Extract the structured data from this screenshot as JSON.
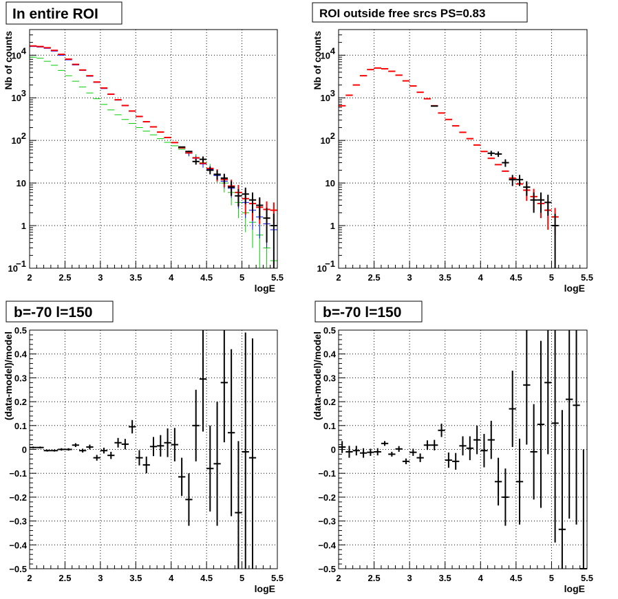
{
  "chart_data": [
    {
      "type": "scatter",
      "title": "In entire ROI",
      "xlabel": "logE",
      "ylabel": "Nb of counts",
      "xlim": [
        2,
        5.5
      ],
      "ylim": [
        0.1,
        40000
      ],
      "yscale": "log",
      "grid": true,
      "x_ticks": [
        "2",
        "2.5",
        "3",
        "3.5",
        "4",
        "4.5",
        "5",
        "5.5"
      ],
      "y_ticks": [
        {
          "v": 0.1,
          "base": "10",
          "exp": "−1"
        },
        {
          "v": 1,
          "base": "1",
          "exp": ""
        },
        {
          "v": 10,
          "base": "10",
          "exp": ""
        },
        {
          "v": 100,
          "base": "10",
          "exp": "2"
        },
        {
          "v": 1000,
          "base": "10",
          "exp": "3"
        },
        {
          "v": 10000,
          "base": "10",
          "exp": "4"
        }
      ],
      "series": [
        {
          "color": "#00cc00",
          "style": "step",
          "values": [
            9000,
            8500,
            7200,
            5800,
            4400,
            3300,
            2450,
            1800,
            1300,
            950,
            700,
            520,
            400,
            310,
            250,
            200,
            165,
            135,
            110,
            90,
            75,
            62,
            50,
            40,
            30,
            22,
            15,
            10,
            6,
            3.5,
            2,
            1.2,
            0.6,
            0.3,
            0.15
          ],
          "err_lo": [
            0,
            0,
            0,
            0,
            0,
            0,
            0,
            0,
            0,
            0,
            0,
            0,
            0,
            0,
            0,
            0,
            0,
            0,
            0,
            0,
            0,
            0,
            8,
            8,
            7,
            6,
            5,
            4,
            3,
            2,
            1.3,
            0.9,
            0.5,
            0.3,
            0.15
          ],
          "err_hi": [
            0,
            0,
            0,
            0,
            0,
            0,
            0,
            0,
            0,
            0,
            0,
            0,
            0,
            0,
            0,
            0,
            0,
            0,
            0,
            0,
            0,
            0,
            8,
            8,
            7,
            6,
            5,
            4,
            3,
            2,
            1.3,
            0.9,
            0.6,
            0.4,
            0.2
          ]
        },
        {
          "color": "#0000ff",
          "style": "step",
          "values": [
            16000,
            15500,
            14500,
            12500,
            10000,
            7800,
            5900,
            4400,
            3200,
            2300,
            1650,
            1200,
            880,
            650,
            480,
            360,
            270,
            205,
            155,
            115,
            88,
            66,
            50,
            38,
            28,
            21,
            15,
            11,
            7.5,
            5,
            3.5,
            2.3,
            1.6,
            1.1,
            0.8
          ],
          "err_lo": [
            0,
            0,
            0,
            0,
            0,
            0,
            0,
            0,
            0,
            0,
            0,
            0,
            0,
            0,
            0,
            0,
            0,
            0,
            0,
            0,
            0,
            0,
            7,
            6,
            5,
            4,
            4,
            3.5,
            3,
            2.5,
            2,
            1.5,
            1.1,
            0.8,
            0.6
          ],
          "err_hi": [
            0,
            0,
            0,
            0,
            0,
            0,
            0,
            0,
            0,
            0,
            0,
            0,
            0,
            0,
            0,
            0,
            0,
            0,
            0,
            0,
            0,
            0,
            7,
            6,
            5,
            4,
            4,
            3.5,
            3,
            2.5,
            2,
            1.5,
            1.1,
            0.8,
            0.6
          ]
        },
        {
          "color": "#ff0000",
          "style": "errorbar",
          "values": [
            16500,
            16000,
            15000,
            13000,
            10500,
            8100,
            6100,
            4500,
            3300,
            2350,
            1700,
            1220,
            900,
            660,
            490,
            365,
            275,
            208,
            157,
            117,
            89,
            67,
            51,
            39,
            29,
            22,
            16,
            12,
            8.5,
            6,
            4.3,
            3.3,
            2.7,
            2.4,
            2.3
          ],
          "err_lo": [
            0,
            0,
            0,
            0,
            0,
            0,
            0,
            0,
            0,
            0,
            0,
            0,
            0,
            0,
            0,
            0,
            0,
            0,
            0,
            0,
            0,
            0,
            0,
            0,
            0,
            0,
            5,
            4,
            3.5,
            3,
            2.5,
            2,
            1.6,
            1.3,
            1.2
          ],
          "err_hi": [
            0,
            0,
            0,
            0,
            0,
            0,
            0,
            0,
            0,
            0,
            0,
            0,
            0,
            0,
            0,
            0,
            0,
            0,
            0,
            0,
            0,
            0,
            0,
            0,
            0,
            0,
            5,
            4,
            3.5,
            3,
            2.5,
            2,
            1.6,
            1.3,
            1.2
          ]
        },
        {
          "color": "#000000",
          "style": "errorbar",
          "values": [
            null,
            null,
            null,
            null,
            null,
            null,
            null,
            null,
            null,
            null,
            null,
            null,
            null,
            null,
            null,
            null,
            null,
            null,
            null,
            null,
            null,
            70,
            55,
            32,
            36,
            20,
            16,
            13,
            8,
            5,
            5.5,
            4,
            3,
            1.5,
            1
          ],
          "err_lo": [
            0,
            0,
            0,
            0,
            0,
            0,
            0,
            0,
            0,
            0,
            0,
            0,
            0,
            0,
            0,
            0,
            0,
            0,
            0,
            0,
            0,
            0,
            0,
            5,
            6,
            4,
            4,
            3.5,
            3,
            2.2,
            2.3,
            2,
            1.6,
            1.1,
            0.92
          ],
          "err_hi": [
            0,
            0,
            0,
            0,
            0,
            0,
            0,
            0,
            0,
            0,
            0,
            0,
            0,
            0,
            0,
            0,
            0,
            0,
            0,
            0,
            0,
            0,
            0,
            5,
            6,
            4,
            4,
            3.5,
            3,
            2.2,
            2.3,
            2,
            1.6,
            1.1,
            0.9
          ]
        }
      ]
    },
    {
      "type": "scatter",
      "title": "ROI outside free srcs PS=0.83",
      "xlabel": "logE",
      "ylabel": "Nb of counts",
      "xlim": [
        2,
        5.5
      ],
      "ylim": [
        0.1,
        40000
      ],
      "yscale": "log",
      "grid": true,
      "x_ticks": [
        "2",
        "2.5",
        "3",
        "3.5",
        "4",
        "4.5",
        "5",
        "5.5"
      ],
      "y_ticks": [
        {
          "v": 0.1,
          "base": "10",
          "exp": "−1"
        },
        {
          "v": 1,
          "base": "1",
          "exp": ""
        },
        {
          "v": 10,
          "base": "10",
          "exp": ""
        },
        {
          "v": 100,
          "base": "10",
          "exp": "2"
        },
        {
          "v": 1000,
          "base": "10",
          "exp": "3"
        },
        {
          "v": 10000,
          "base": "10",
          "exp": "4"
        }
      ],
      "series": [
        {
          "color": "#ff0000",
          "style": "errorbar",
          "values": [
            650,
            1150,
            2000,
            3300,
            4600,
            5000,
            4800,
            4200,
            3400,
            2500,
            1900,
            1350,
            950,
            650,
            440,
            310,
            220,
            155,
            110,
            78,
            55,
            38,
            27,
            19,
            13,
            9.5,
            6.8,
            4.8,
            3.3,
            2.3,
            1.6
          ],
          "err_lo": [
            0,
            0,
            0,
            0,
            0,
            0,
            0,
            0,
            0,
            0,
            0,
            0,
            0,
            0,
            0,
            0,
            0,
            0,
            0,
            0,
            0,
            0,
            0,
            0,
            0,
            0,
            3,
            2.5,
            1.8,
            1.5,
            1
          ],
          "err_hi": [
            0,
            0,
            0,
            0,
            0,
            0,
            0,
            0,
            0,
            0,
            0,
            0,
            0,
            0,
            0,
            0,
            0,
            0,
            0,
            0,
            0,
            0,
            0,
            0,
            0,
            0,
            3,
            2.5,
            1.8,
            1.5,
            1
          ]
        },
        {
          "color": "#000000",
          "style": "errorbar",
          "values": [
            null,
            null,
            null,
            null,
            null,
            null,
            null,
            null,
            null,
            null,
            null,
            null,
            null,
            640,
            null,
            null,
            null,
            null,
            null,
            null,
            null,
            50,
            48,
            30,
            12,
            12,
            8,
            4,
            4,
            3.5,
            1
          ],
          "err_lo": [
            0,
            0,
            0,
            0,
            0,
            0,
            0,
            0,
            0,
            0,
            0,
            0,
            0,
            0,
            0,
            0,
            0,
            0,
            0,
            0,
            0,
            7,
            7,
            6,
            3.5,
            3.5,
            3,
            2,
            2,
            1.8,
            0.92
          ],
          "err_hi": [
            0,
            0,
            0,
            0,
            0,
            0,
            0,
            0,
            0,
            0,
            0,
            0,
            0,
            0,
            0,
            0,
            0,
            0,
            0,
            0,
            0,
            7,
            7,
            6,
            3.5,
            3.5,
            3,
            2,
            2,
            1.8,
            0.9
          ]
        }
      ]
    },
    {
      "type": "scatter",
      "title": "b=-70 l=150",
      "xlabel": "logE",
      "ylabel": "(data-model)/model",
      "xlim": [
        2,
        5.5
      ],
      "ylim": [
        -0.5,
        0.5
      ],
      "grid": true,
      "x_ticks": [
        "2",
        "2.5",
        "3",
        "3.5",
        "4",
        "4.5",
        "5",
        "5.5"
      ],
      "y_ticks": [
        "−0.5",
        "−0.4",
        "−0.3",
        "−0.2",
        "−0.1",
        "0",
        "0.1",
        "0.2",
        "0.3",
        "0.4",
        "0.5"
      ],
      "series": [
        {
          "color": "#000000",
          "style": "errorbar",
          "values": [
            0.008,
            0.008,
            -0.005,
            -0.005,
            0.0,
            0.0,
            0.018,
            -0.005,
            0.01,
            -0.035,
            -0.005,
            -0.025,
            0.028,
            0.022,
            0.095,
            -0.035,
            -0.065,
            0.012,
            0.015,
            0.028,
            0.02,
            -0.115,
            -0.21,
            0.1,
            0.295,
            -0.08,
            -0.06,
            0.28,
            0.07,
            -0.265,
            -0.01,
            -0.035
          ],
          "err": [
            0.004,
            0.004,
            0.004,
            0.004,
            0.005,
            0.005,
            0.008,
            0.008,
            0.01,
            0.012,
            0.012,
            0.015,
            0.02,
            0.022,
            0.028,
            0.032,
            0.035,
            0.04,
            0.045,
            0.06,
            0.07,
            0.08,
            0.11,
            0.15,
            0.22,
            0.18,
            0.26,
            0.25,
            0.35,
            0.3,
            0.5,
            0.5
          ]
        }
      ]
    },
    {
      "type": "scatter",
      "title": "b=-70 l=150",
      "xlabel": "logE",
      "ylabel": "(data-model)/model",
      "xlim": [
        2,
        5.5
      ],
      "ylim": [
        -0.5,
        0.5
      ],
      "grid": true,
      "x_ticks": [
        "2",
        "2.5",
        "3",
        "3.5",
        "4",
        "4.5",
        "5",
        "5.5"
      ],
      "y_ticks": [
        "−0.5",
        "−0.4",
        "−0.3",
        "−0.2",
        "−0.1",
        "0",
        "0.1",
        "0.2",
        "0.3",
        "0.4",
        "0.5"
      ],
      "series": [
        {
          "color": "#000000",
          "style": "errorbar",
          "values": [
            0.01,
            -0.01,
            -0.005,
            -0.015,
            -0.012,
            -0.01,
            0.025,
            -0.02,
            0.002,
            -0.05,
            -0.012,
            -0.035,
            0.018,
            0.018,
            0.08,
            -0.045,
            -0.05,
            0.015,
            0.005,
            0.04,
            -0.005,
            0.04,
            -0.135,
            -0.2,
            0.17,
            -0.135,
            0.27,
            -0.01,
            0.105,
            0.28,
            0.11,
            -0.335,
            0.21,
            0.185,
            -0.5
          ],
          "err": [
            0.025,
            0.025,
            0.02,
            0.02,
            0.015,
            0.015,
            0.01,
            0.01,
            0.012,
            0.012,
            0.015,
            0.018,
            0.02,
            0.022,
            0.028,
            0.032,
            0.035,
            0.04,
            0.05,
            0.06,
            0.07,
            0.08,
            0.1,
            0.12,
            0.16,
            0.18,
            0.25,
            0.2,
            0.35,
            0.3,
            0.5,
            0.5,
            0.5,
            0.5,
            0.5
          ]
        }
      ]
    }
  ]
}
